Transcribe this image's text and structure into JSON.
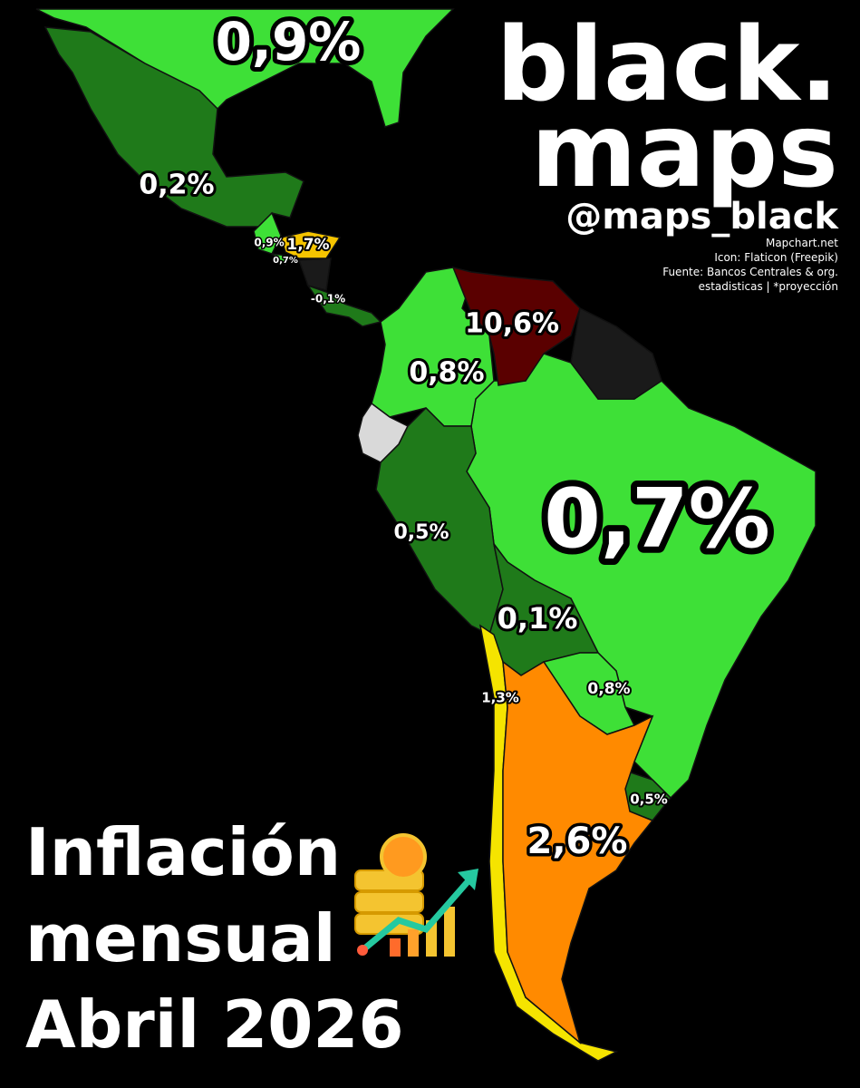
{
  "brand": {
    "line1": "black.",
    "line2": "maps",
    "handle": "@maps_black"
  },
  "credits": [
    "Mapchart.net",
    "Icon: Flaticon (Freepik)",
    "Fuente: Bancos Centrales & org.",
    "estadisticas | *proyección"
  ],
  "title": [
    "Inflación",
    "mensual",
    "Abril 2026"
  ],
  "labels": {
    "usa": "0,9%",
    "mexico": "0,2%",
    "guatemala": "0,9%",
    "honduras": "1,7%",
    "el_salvador": "0,7%",
    "costa_rica": "-0,1%",
    "venezuela": "10,6%",
    "colombia": "0,8%",
    "brazil": "0,7%",
    "peru": "0,5%",
    "bolivia": "0,1%",
    "chile": "1,3%",
    "paraguay": "0,8%",
    "uruguay": "0,5%",
    "argentina": "2,6%"
  }
}
